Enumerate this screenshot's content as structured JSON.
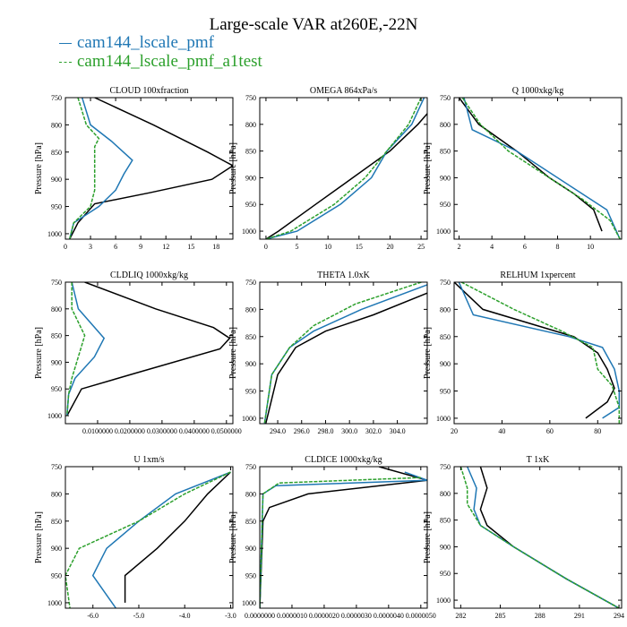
{
  "title": "Large-scale VAR at260E,-22N",
  "legend": [
    {
      "name": "cam144_lscale_pmf",
      "color": "#1f77b4"
    },
    {
      "name": "cam144_lscale_pmf_a1test",
      "color": "#2ca02c"
    }
  ],
  "colors": {
    "black": "#000000",
    "blue": "#1f77b4",
    "green": "#2ca02c"
  },
  "chart_data": [
    {
      "type": "line",
      "title": "CLOUD 100xfraction",
      "ylabel": "Pressure [hPa]",
      "xlim": [
        0,
        20
      ],
      "ylim": [
        1010,
        750
      ],
      "xticks": [
        0,
        3,
        6,
        9,
        12,
        15,
        18
      ],
      "xticklabels": [
        "0",
        "3",
        "6",
        "9",
        "12",
        "15",
        "18"
      ],
      "yticks": [
        750,
        800,
        850,
        900,
        950,
        1000
      ],
      "series": [
        {
          "x": [
            3.5,
            10.5,
            17.0,
            20.0,
            17.5,
            10.0,
            3.5,
            1.5,
            0.5
          ],
          "y": [
            750,
            800,
            850,
            875,
            900,
            925,
            945,
            980,
            1010
          ]
        },
        {
          "x": [
            2.0,
            3.0,
            5.5,
            8.0,
            7.0,
            6.0,
            4.0,
            1.0,
            0.5
          ],
          "y": [
            750,
            800,
            830,
            865,
            890,
            920,
            950,
            980,
            1010
          ]
        },
        {
          "x": [
            1.5,
            2.5,
            4.0,
            3.5,
            3.5,
            3.5,
            3.0,
            1.0,
            0.5
          ],
          "y": [
            750,
            800,
            825,
            840,
            880,
            920,
            950,
            980,
            1010
          ]
        }
      ]
    },
    {
      "type": "line",
      "title": "OMEGA 864xPa/s",
      "ylabel": "Pressure [hPa]",
      "xlim": [
        -1,
        26
      ],
      "ylim": [
        1015,
        750
      ],
      "xticks": [
        0,
        5,
        10,
        15,
        20,
        25
      ],
      "xticklabels": [
        "0",
        "5",
        "10",
        "15",
        "20",
        "25"
      ],
      "yticks": [
        750,
        800,
        850,
        900,
        950,
        1000
      ],
      "series": [
        {
          "x": [
            26,
            24.5,
            20.0,
            14.0,
            8.0,
            2.0,
            0.0
          ],
          "y": [
            780,
            800,
            850,
            900,
            950,
            1000,
            1015
          ]
        },
        {
          "x": [
            25.5,
            23.5,
            19.5,
            17.0,
            12.0,
            5.0,
            0.0
          ],
          "y": [
            750,
            800,
            850,
            900,
            950,
            1000,
            1015
          ]
        },
        {
          "x": [
            25.0,
            23.0,
            19.5,
            16.0,
            11.0,
            4.0,
            0.0
          ],
          "y": [
            750,
            800,
            850,
            900,
            950,
            1000,
            1015
          ]
        }
      ]
    },
    {
      "type": "line",
      "title": "Q 1000xkg/kg",
      "ylabel": "Pressure [hPa]",
      "xlim": [
        1.7,
        11.9
      ],
      "ylim": [
        1015,
        750
      ],
      "xticks": [
        2,
        4,
        6,
        8,
        10
      ],
      "xticklabels": [
        "2",
        "4",
        "6",
        "8",
        "10"
      ],
      "yticks": [
        750,
        800,
        850,
        900,
        950,
        1000
      ],
      "series": [
        {
          "x": [
            2.0,
            3.2,
            5.5,
            7.5,
            9.0,
            10.2,
            10.7
          ],
          "y": [
            750,
            800,
            850,
            900,
            930,
            960,
            1000
          ]
        },
        {
          "x": [
            2.3,
            2.8,
            5.5,
            7.0,
            9.0,
            11.0,
            11.8
          ],
          "y": [
            750,
            810,
            850,
            880,
            920,
            960,
            1015
          ]
        },
        {
          "x": [
            2.2,
            3.3,
            5.0,
            7.5,
            9.5,
            11.2,
            11.8
          ],
          "y": [
            750,
            800,
            850,
            900,
            940,
            980,
            1015
          ]
        }
      ]
    },
    {
      "type": "line",
      "title": "CLDLIQ 1000xkg/kg",
      "ylabel": "Pressure [hPa]",
      "xlim": [
        0,
        0.052
      ],
      "ylim": [
        1015,
        750
      ],
      "xticks": [
        0.01,
        0.02,
        0.03,
        0.04,
        0.05
      ],
      "xticklabels": [
        "0.0100000",
        "0.0200000",
        "0.0300000",
        "0.0400000",
        "0.0500000"
      ],
      "yticks": [
        750,
        800,
        850,
        900,
        950,
        1000
      ],
      "series": [
        {
          "x": [
            0.006,
            0.028,
            0.046,
            0.051,
            0.048,
            0.022,
            0.005,
            0.0005
          ],
          "y": [
            750,
            800,
            835,
            855,
            875,
            920,
            950,
            1000
          ]
        },
        {
          "x": [
            0.002,
            0.004,
            0.012,
            0.009,
            0.003,
            0.001,
            0.0005
          ],
          "y": [
            750,
            800,
            855,
            890,
            930,
            960,
            1000
          ]
        },
        {
          "x": [
            0.002,
            0.002,
            0.006,
            0.004,
            0.002,
            0.001,
            0.0005
          ],
          "y": [
            750,
            800,
            850,
            890,
            930,
            960,
            1000
          ]
        }
      ]
    },
    {
      "type": "line",
      "title": "THETA 1.0xK",
      "ylabel": "Pressure [hPa]",
      "xlim": [
        292.5,
        306.5
      ],
      "ylim": [
        1010,
        750
      ],
      "xticks": [
        294,
        296,
        298,
        300,
        302,
        304
      ],
      "xticklabels": [
        "294.0",
        "296.0",
        "298.0",
        "300.0",
        "302.0",
        "304.0"
      ],
      "yticks": [
        750,
        800,
        850,
        900,
        950,
        1000
      ],
      "series": [
        {
          "x": [
            306.5,
            302.0,
            298.0,
            295.5,
            294.0,
            293.0
          ],
          "y": [
            770,
            810,
            840,
            870,
            920,
            1010
          ]
        },
        {
          "x": [
            306.5,
            301.0,
            297.0,
            295.0,
            293.5,
            292.9
          ],
          "y": [
            755,
            800,
            840,
            870,
            920,
            1010
          ]
        },
        {
          "x": [
            306.0,
            300.5,
            297.0,
            295.0,
            293.5,
            292.9
          ],
          "y": [
            750,
            790,
            830,
            870,
            920,
            1010
          ]
        }
      ]
    },
    {
      "type": "line",
      "title": "RELHUM 1xpercent",
      "ylabel": "Pressure [hPa]",
      "xlim": [
        20,
        90
      ],
      "ylim": [
        1010,
        750
      ],
      "xticks": [
        20,
        40,
        60,
        80
      ],
      "xticklabels": [
        "20",
        "40",
        "60",
        "80"
      ],
      "yticks": [
        750,
        800,
        850,
        900,
        950,
        1000
      ],
      "series": [
        {
          "x": [
            20,
            32,
            70,
            80,
            84,
            87,
            84,
            75
          ],
          "y": [
            750,
            800,
            850,
            880,
            910,
            945,
            970,
            1000
          ]
        },
        {
          "x": [
            22,
            28,
            68,
            82,
            87,
            89,
            89,
            82
          ],
          "y": [
            750,
            810,
            850,
            870,
            910,
            950,
            980,
            1000
          ]
        },
        {
          "x": [
            23,
            45,
            65,
            78,
            80,
            86,
            89,
            89
          ],
          "y": [
            750,
            800,
            840,
            870,
            910,
            940,
            980,
            1010
          ]
        }
      ]
    },
    {
      "type": "line",
      "title": "U 1xm/s",
      "ylabel": "Pressure [hPa]",
      "xlim": [
        -6.6,
        -2.95
      ],
      "ylim": [
        1010,
        750
      ],
      "xticks": [
        -6,
        -5,
        -4,
        -3
      ],
      "xticklabels": [
        "-6.0",
        "-5.0",
        "-4.0",
        "-3.0"
      ],
      "yticks": [
        750,
        800,
        850,
        900,
        950,
        1000
      ],
      "series": [
        {
          "x": [
            -3.0,
            -3.5,
            -4.0,
            -4.6,
            -5.3,
            -5.3
          ],
          "y": [
            760,
            800,
            850,
            900,
            950,
            1000
          ]
        },
        {
          "x": [
            -3.0,
            -4.2,
            -5.0,
            -5.7,
            -6.0,
            -5.5
          ],
          "y": [
            760,
            800,
            850,
            900,
            950,
            1010
          ]
        },
        {
          "x": [
            -3.0,
            -4.0,
            -5.0,
            -6.3,
            -6.6,
            -6.5
          ],
          "y": [
            760,
            800,
            850,
            900,
            950,
            1010
          ]
        }
      ]
    },
    {
      "type": "line",
      "title": "CLDICE 1000xkg/kg",
      "ylabel": "Pressure [hPa]",
      "xlim": [
        0,
        5.2e-06
      ],
      "ylim": [
        1010,
        750
      ],
      "xticks": [
        0,
        1e-06,
        2e-06,
        3e-06,
        4e-06,
        5e-06
      ],
      "xticklabels": [
        "0.0000000",
        "0.0000010",
        "0.0000020",
        "0.0000030",
        "0.0000040",
        "0.0000050"
      ],
      "yticks": [
        750,
        800,
        850,
        900,
        950,
        1000
      ],
      "series": [
        {
          "x": [
            3.7e-06,
            5.2e-06,
            1.5e-06,
            3e-07,
            1e-07,
            0.0
          ],
          "y": [
            750,
            775,
            800,
            825,
            850,
            1010
          ]
        },
        {
          "x": [
            4.5e-06,
            5.2e-06,
            5e-07,
            1e-07,
            0.0
          ],
          "y": [
            760,
            775,
            785,
            800,
            1010
          ]
        },
        {
          "x": [
            5e-06,
            6e-07,
            1e-07,
            0.0
          ],
          "y": [
            770,
            780,
            800,
            1010
          ]
        }
      ]
    },
    {
      "type": "line",
      "title": "T 1xK",
      "ylabel": "Pressure [hPa]",
      "xlim": [
        281.5,
        294.2
      ],
      "ylim": [
        1015,
        750
      ],
      "xticks": [
        282,
        285,
        288,
        291,
        294
      ],
      "xticklabels": [
        "282",
        "285",
        "288",
        "291",
        "294"
      ],
      "yticks": [
        750,
        800,
        850,
        900,
        950,
        1000
      ],
      "series": [
        {
          "x": [
            283.5,
            284.0,
            283.5,
            284.0,
            286.0,
            290.0,
            294.0
          ],
          "y": [
            750,
            790,
            830,
            860,
            900,
            960,
            1015
          ]
        },
        {
          "x": [
            282.5,
            283.2,
            283.0,
            283.5,
            286.0,
            290.0,
            294.0
          ],
          "y": [
            750,
            790,
            830,
            860,
            900,
            960,
            1015
          ]
        },
        {
          "x": [
            282.0,
            282.5,
            282.5,
            283.5,
            286.0,
            290.0,
            294.0
          ],
          "y": [
            750,
            790,
            820,
            860,
            900,
            960,
            1015
          ]
        }
      ]
    }
  ]
}
